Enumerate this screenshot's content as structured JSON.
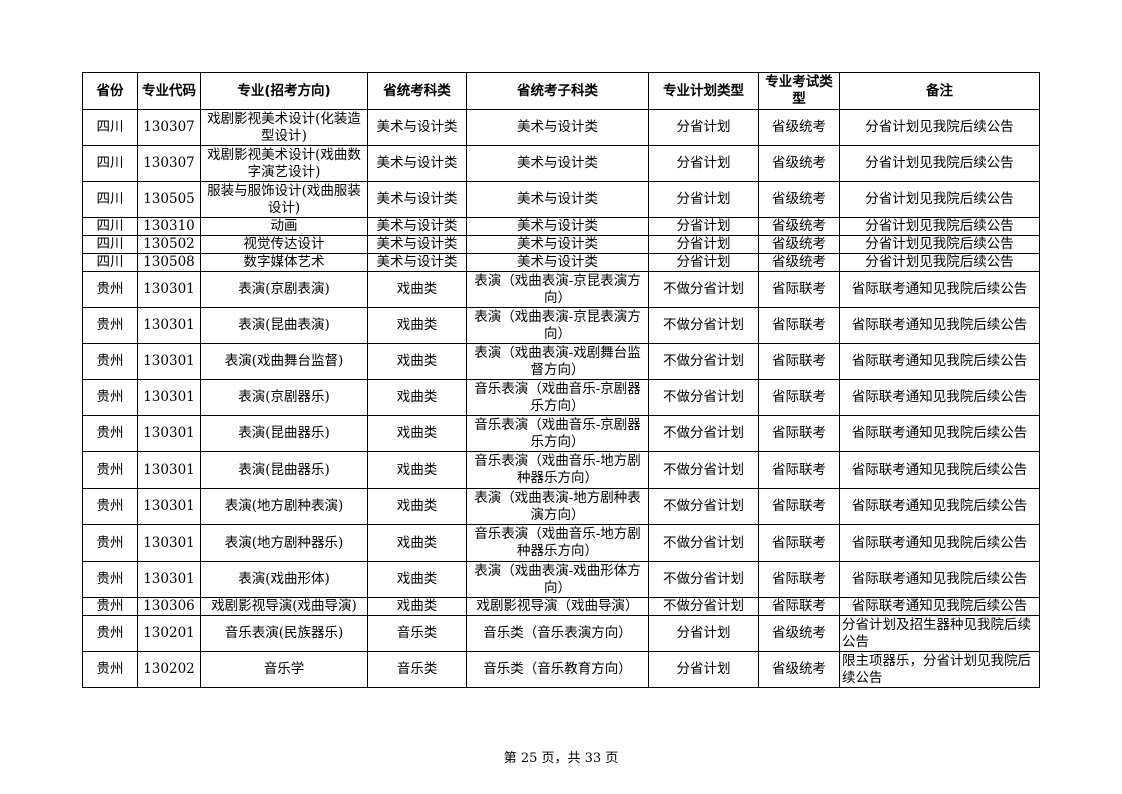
{
  "table": {
    "headers": [
      "省份",
      "专业代码",
      "专业(招考方向)",
      "省统考科类",
      "省统考子科类",
      "专业计划类型",
      "专业考试类型",
      "备注"
    ],
    "rows": [
      [
        "四川",
        "130307",
        "戏剧影视美术设计(化装造型设计)",
        "美术与设计类",
        "美术与设计类",
        "分省计划",
        "省级统考",
        "分省计划见我院后续公告"
      ],
      [
        "四川",
        "130307",
        "戏剧影视美术设计(戏曲数字演艺设计)",
        "美术与设计类",
        "美术与设计类",
        "分省计划",
        "省级统考",
        "分省计划见我院后续公告"
      ],
      [
        "四川",
        "130505",
        "服装与服饰设计(戏曲服装设计)",
        "美术与设计类",
        "美术与设计类",
        "分省计划",
        "省级统考",
        "分省计划见我院后续公告"
      ],
      [
        "四川",
        "130310",
        "动画",
        "美术与设计类",
        "美术与设计类",
        "分省计划",
        "省级统考",
        "分省计划见我院后续公告"
      ],
      [
        "四川",
        "130502",
        "视觉传达设计",
        "美术与设计类",
        "美术与设计类",
        "分省计划",
        "省级统考",
        "分省计划见我院后续公告"
      ],
      [
        "四川",
        "130508",
        "数字媒体艺术",
        "美术与设计类",
        "美术与设计类",
        "分省计划",
        "省级统考",
        "分省计划见我院后续公告"
      ],
      [
        "贵州",
        "130301",
        "表演(京剧表演)",
        "戏曲类",
        "表演（戏曲表演-京昆表演方向）",
        "不做分省计划",
        "省际联考",
        "省际联考通知见我院后续公告"
      ],
      [
        "贵州",
        "130301",
        "表演(昆曲表演)",
        "戏曲类",
        "表演（戏曲表演-京昆表演方向）",
        "不做分省计划",
        "省际联考",
        "省际联考通知见我院后续公告"
      ],
      [
        "贵州",
        "130301",
        "表演(戏曲舞台监督)",
        "戏曲类",
        "表演（戏曲表演-戏剧舞台监督方向）",
        "不做分省计划",
        "省际联考",
        "省际联考通知见我院后续公告"
      ],
      [
        "贵州",
        "130301",
        "表演(京剧器乐)",
        "戏曲类",
        "音乐表演（戏曲音乐-京剧器乐方向）",
        "不做分省计划",
        "省际联考",
        "省际联考通知见我院后续公告"
      ],
      [
        "贵州",
        "130301",
        "表演(昆曲器乐)",
        "戏曲类",
        "音乐表演（戏曲音乐-京剧器乐方向）",
        "不做分省计划",
        "省际联考",
        "省际联考通知见我院后续公告"
      ],
      [
        "贵州",
        "130301",
        "表演(昆曲器乐)",
        "戏曲类",
        "音乐表演（戏曲音乐-地方剧种器乐方向）",
        "不做分省计划",
        "省际联考",
        "省际联考通知见我院后续公告"
      ],
      [
        "贵州",
        "130301",
        "表演(地方剧种表演)",
        "戏曲类",
        "表演（戏曲表演-地方剧种表演方向）",
        "不做分省计划",
        "省际联考",
        "省际联考通知见我院后续公告"
      ],
      [
        "贵州",
        "130301",
        "表演(地方剧种器乐)",
        "戏曲类",
        "音乐表演（戏曲音乐-地方剧种器乐方向）",
        "不做分省计划",
        "省际联考",
        "省际联考通知见我院后续公告"
      ],
      [
        "贵州",
        "130301",
        "表演(戏曲形体)",
        "戏曲类",
        "表演（戏曲表演-戏曲形体方向）",
        "不做分省计划",
        "省际联考",
        "省际联考通知见我院后续公告"
      ],
      [
        "贵州",
        "130306",
        "戏剧影视导演(戏曲导演)",
        "戏曲类",
        "戏剧影视导演（戏曲导演）",
        "不做分省计划",
        "省际联考",
        "省际联考通知见我院后续公告"
      ],
      [
        "贵州",
        "130201",
        "音乐表演(民族器乐)",
        "音乐类",
        "音乐类（音乐表演方向）",
        "分省计划",
        "省级统考",
        "分省计划及招生器种见我院后续公告"
      ],
      [
        "贵州",
        "130202",
        "音乐学",
        "音乐类",
        "音乐类（音乐教育方向）",
        "分省计划",
        "省级统考",
        "限主项器乐，分省计划见我院后续公告"
      ]
    ]
  },
  "footer": "第 25 页，共 33 页"
}
